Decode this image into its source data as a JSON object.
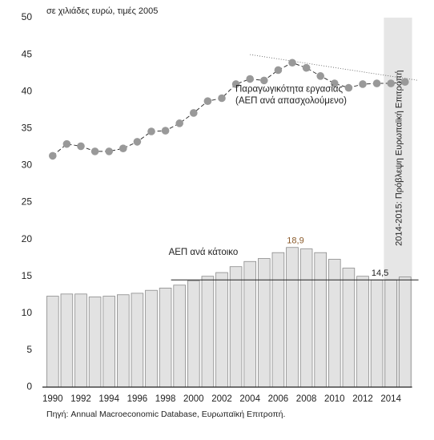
{
  "chart_data": {
    "type": "bar_line",
    "title": "σε χιλιάδες ευρώ, τιμές 2005",
    "source": "Πηγή: Annual Macroeconomic Database, Ευρωπαϊκή Επιτροπή.",
    "categories": [
      "1990",
      null,
      "1992",
      null,
      "1994",
      null,
      "1996",
      null,
      "1998",
      null,
      "2000",
      null,
      "2002",
      null,
      "2004",
      null,
      "2006",
      null,
      "2008",
      null,
      "2010",
      null,
      "2012",
      null,
      "2014",
      null
    ],
    "series": [
      {
        "name": "ΑΕΠ ανά κάτοικο",
        "type": "bar",
        "color": "#e2e2e2",
        "values": [
          12.3,
          12.6,
          12.6,
          12.2,
          12.3,
          12.5,
          12.7,
          13.1,
          13.4,
          13.8,
          14.4,
          15.0,
          15.5,
          16.3,
          17.0,
          17.4,
          18.2,
          18.9,
          18.7,
          18.2,
          17.3,
          16.1,
          15.0,
          14.5,
          14.5,
          14.9
        ],
        "value_labels": [
          null,
          null,
          null,
          null,
          null,
          null,
          null,
          "",
          null,
          null,
          null,
          null,
          null,
          null,
          null,
          null,
          null,
          "18,9",
          null,
          null,
          null,
          null,
          null,
          "14,5",
          null,
          null
        ]
      },
      {
        "name": "Παραγωγικότητα εργασίας",
        "name_line2": "(ΑΕΠ ανά απασχολούμενο)",
        "type": "line",
        "color": "#999999",
        "values": [
          31.3,
          32.9,
          32.6,
          31.9,
          31.9,
          32.3,
          33.2,
          34.6,
          34.7,
          35.7,
          37.1,
          38.7,
          39.1,
          41.0,
          41.7,
          41.5,
          42.9,
          43.9,
          43.2,
          42.1,
          41.1,
          40.5,
          41.0,
          41.1,
          41.1,
          41.3
        ]
      }
    ],
    "forecast_label": "2014-2015: Πρόβλεψη Ευρωπαϊκή Επιτροπή",
    "trend_line": [
      45,
      41.5
    ],
    "ylim": [
      0,
      50
    ],
    "yticks": [
      0,
      5,
      10,
      15,
      20,
      25,
      30,
      35,
      40,
      45,
      50
    ]
  }
}
